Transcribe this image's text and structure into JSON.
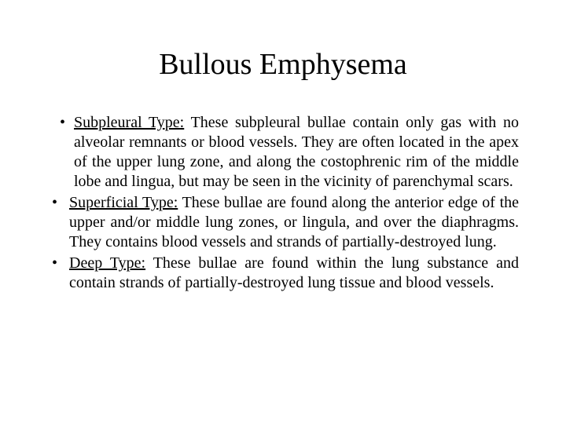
{
  "slide": {
    "title": "Bullous Emphysema",
    "bullets": [
      {
        "label": "Subpleural Type:",
        "text": " These subpleural bullae contain only gas with no alveolar remnants or blood vessels. They are often located in the apex of the upper lung zone, and along the costophrenic rim of the middle lobe and lingua, but may be seen in the vicinity of parenchymal scars.",
        "indent": true
      },
      {
        "label": "Superficial Type:",
        "text": " These bullae are found along the anterior edge of the upper and/or middle lung zones, or lingula, and over the diaphragms. They contains blood vessels and strands of partially-destroyed lung.",
        "indent": false
      },
      {
        "label": "Deep Type:",
        "text": " These bullae are found within the lung substance and contain strands of partially-destroyed lung tissue and blood vessels.",
        "indent": false
      }
    ]
  },
  "style": {
    "background_color": "#ffffff",
    "text_color": "#000000",
    "title_fontsize": 38,
    "body_fontsize": 20,
    "font_family": "Times New Roman"
  }
}
